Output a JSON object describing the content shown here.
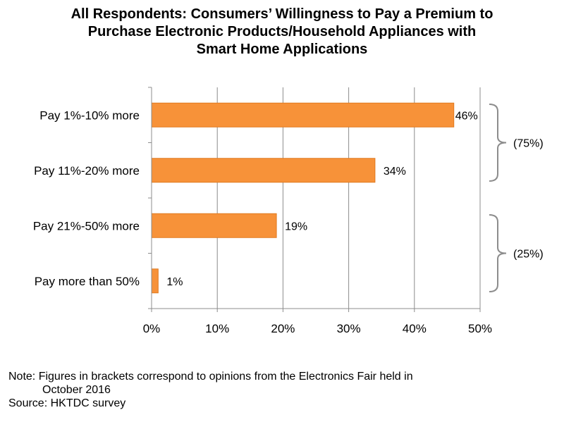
{
  "title_lines": [
    "All Respondents: Consumers’ Willingness to Pay a Premium to",
    "Purchase Electronic Products/Household Appliances with",
    "Smart Home Applications"
  ],
  "chart_data": {
    "type": "bar",
    "orientation": "horizontal",
    "title": "All Respondents: Consumers’ Willingness to Pay a Premium to Purchase Electronic Products/Household Appliances with Smart Home Applications",
    "categories": [
      "Pay 1%-10% more",
      "Pay 11%-20% more",
      "Pay 21%-50% more",
      "Pay more than 50%"
    ],
    "values": [
      46,
      34,
      19,
      1
    ],
    "data_labels": [
      "46%",
      "34%",
      "19%",
      "1%"
    ],
    "x_ticks": [
      "0%",
      "10%",
      "20%",
      "30%",
      "40%",
      "50%"
    ],
    "xlim": [
      0,
      50
    ],
    "unit": "%",
    "grid": "vertical",
    "bar_color": "#F79239",
    "bar_edge_color": "#E07A20",
    "brackets": [
      {
        "label": "(75%)",
        "categories": [
          "Pay 1%-10% more",
          "Pay 11%-20% more"
        ]
      },
      {
        "label": "(25%)",
        "categories": [
          "Pay 21%-50% more",
          "Pay more than 50%"
        ]
      }
    ]
  },
  "notes": {
    "note_line1": "Note: Figures in brackets correspond to opinions from the Electronics Fair held in",
    "note_line2": "October 2016",
    "source": "Source: HKTDC survey"
  }
}
